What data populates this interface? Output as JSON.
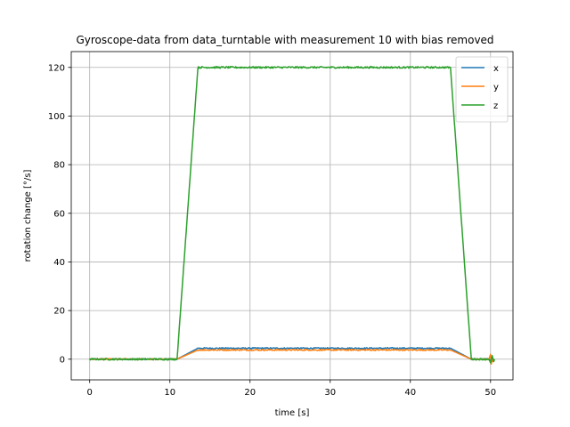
{
  "chart_data": {
    "type": "line",
    "title": "Gyroscope-data from data_turntable with measurement 10 with bias removed",
    "xlabel": "time [s]",
    "ylabel": "rotation change [°/s]",
    "xlim": [
      -2.3,
      52.8
    ],
    "ylim": [
      -8.5,
      126.5
    ],
    "xticks": [
      0,
      10,
      20,
      30,
      40,
      50
    ],
    "yticks": [
      0,
      20,
      40,
      60,
      80,
      100,
      120
    ],
    "grid": true,
    "legend_position": "top-right",
    "series": [
      {
        "name": "x",
        "color": "#1f77b4",
        "noise": 0.25,
        "points": [
          [
            0,
            0
          ],
          [
            10.9,
            0
          ],
          [
            13.5,
            4.5
          ],
          [
            45.0,
            4.5
          ],
          [
            47.6,
            0
          ],
          [
            50.2,
            0
          ]
        ]
      },
      {
        "name": "y",
        "color": "#ff7f0e",
        "noise": 0.25,
        "points": [
          [
            0,
            0
          ],
          [
            10.9,
            0
          ],
          [
            13.5,
            3.8
          ],
          [
            45.0,
            3.8
          ],
          [
            47.6,
            0
          ],
          [
            49.8,
            0
          ],
          [
            50.0,
            2.0
          ],
          [
            50.1,
            -2.0
          ],
          [
            50.2,
            1.0
          ],
          [
            50.3,
            -1.0
          ],
          [
            50.4,
            0
          ]
        ]
      },
      {
        "name": "z",
        "color": "#2ca02c",
        "noise": 0.35,
        "points": [
          [
            0,
            0
          ],
          [
            10.9,
            0
          ],
          [
            13.5,
            120.0
          ],
          [
            45.0,
            120.0
          ],
          [
            47.6,
            0
          ],
          [
            49.8,
            0
          ],
          [
            50.0,
            -1.5
          ],
          [
            50.2,
            1.5
          ],
          [
            50.4,
            -1.0
          ],
          [
            50.5,
            0
          ]
        ]
      }
    ]
  }
}
